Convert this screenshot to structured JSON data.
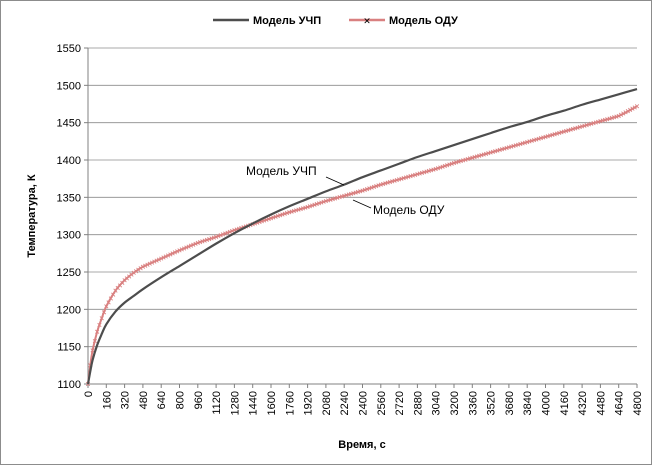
{
  "chart_data": {
    "type": "line",
    "title": "",
    "xlabel": "Время, с",
    "ylabel": "Температура, К",
    "xlim": [
      0,
      4800
    ],
    "ylim": [
      1100,
      1550
    ],
    "xticks": [
      0,
      160,
      320,
      480,
      640,
      800,
      960,
      1120,
      1280,
      1440,
      1600,
      1760,
      1920,
      2080,
      2240,
      2400,
      2560,
      2720,
      2880,
      3040,
      3200,
      3360,
      3520,
      3680,
      3840,
      4000,
      4160,
      4320,
      4480,
      4640,
      4800
    ],
    "yticks": [
      1100,
      1150,
      1200,
      1250,
      1300,
      1350,
      1400,
      1450,
      1500,
      1550
    ],
    "grid": "horizontal",
    "legend_position": "top-center",
    "series": [
      {
        "name": "Модель УЧП",
        "color": "#4d4d4d",
        "marker": "none",
        "x": [
          0,
          20,
          40,
          80,
          120,
          160,
          240,
          320,
          400,
          480,
          640,
          800,
          960,
          1120,
          1280,
          1440,
          1600,
          1760,
          1920,
          2080,
          2240,
          2400,
          2560,
          2720,
          2880,
          3040,
          3200,
          3360,
          3520,
          3680,
          3840,
          4000,
          4160,
          4320,
          4480,
          4640,
          4800
        ],
        "y": [
          1100,
          1117,
          1132,
          1152,
          1167,
          1180,
          1197,
          1209,
          1218,
          1227,
          1243,
          1258,
          1273,
          1288,
          1302,
          1315,
          1327,
          1338,
          1348,
          1358,
          1367,
          1377,
          1386,
          1395,
          1404,
          1412,
          1420,
          1428,
          1436,
          1444,
          1451,
          1459,
          1466,
          1474,
          1481,
          1488,
          1495
        ]
      },
      {
        "name": "Модель ОДУ",
        "color": "#d98080",
        "marker": "cross",
        "x": [
          0,
          20,
          40,
          80,
          120,
          160,
          240,
          320,
          400,
          480,
          640,
          800,
          960,
          1120,
          1280,
          1440,
          1600,
          1760,
          1920,
          2080,
          2240,
          2400,
          2560,
          2720,
          2880,
          3040,
          3200,
          3360,
          3520,
          3680,
          3840,
          4000,
          4160,
          4320,
          4480,
          4640,
          4800
        ],
        "y": [
          1100,
          1125,
          1145,
          1170,
          1188,
          1204,
          1225,
          1239,
          1249,
          1257,
          1268,
          1279,
          1289,
          1297,
          1306,
          1314,
          1322,
          1330,
          1337,
          1345,
          1352,
          1359,
          1367,
          1374,
          1381,
          1388,
          1396,
          1403,
          1410,
          1417,
          1424,
          1431,
          1438,
          1445,
          1452,
          1459,
          1472
        ]
      }
    ],
    "annotations": [
      {
        "text": "Модель УЧП",
        "series": 0
      },
      {
        "text": "Модель ОДУ",
        "series": 1
      }
    ]
  }
}
